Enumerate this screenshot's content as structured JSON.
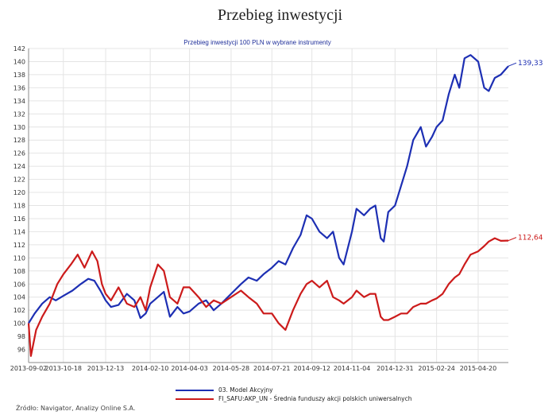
{
  "page_title": "Przebieg inwestycji",
  "source": "Źródło: Navigator, Analizy Online S.A.",
  "chart_data": {
    "type": "line",
    "title": "Przebieg inwestycji 100 PLN w wybrane instrumenty",
    "ylim": [
      94,
      142
    ],
    "y_ticks": [
      96,
      98,
      100,
      102,
      104,
      106,
      108,
      110,
      112,
      114,
      116,
      118,
      120,
      122,
      124,
      126,
      128,
      130,
      132,
      134,
      136,
      138,
      140,
      142
    ],
    "x_range": [
      "2013-09-02",
      "2015-05-30"
    ],
    "x_ticks": [
      "2013-09-02",
      "2013-10-18",
      "2013-12-13",
      "2014-02-10",
      "2014-04-03",
      "2014-05-28",
      "2014-07-21",
      "2014-09-12",
      "2014-11-04",
      "2014-12-31",
      "2015-02-24",
      "2015-04-20"
    ],
    "grid": true,
    "legend_position": "bottom",
    "series": [
      {
        "name": "03. Model Akcyjny",
        "color": "#1d2fb3",
        "end_label": "139,33",
        "points": [
          [
            "2013-09-02",
            100
          ],
          [
            "2013-09-10",
            101.5
          ],
          [
            "2013-09-20",
            103
          ],
          [
            "2013-09-30",
            104
          ],
          [
            "2013-10-08",
            103.5
          ],
          [
            "2013-10-18",
            104.2
          ],
          [
            "2013-10-30",
            105
          ],
          [
            "2013-11-10",
            106
          ],
          [
            "2013-11-20",
            106.8
          ],
          [
            "2013-11-28",
            106.5
          ],
          [
            "2013-12-06",
            105
          ],
          [
            "2013-12-13",
            103.5
          ],
          [
            "2013-12-20",
            102.5
          ],
          [
            "2013-12-30",
            102.8
          ],
          [
            "2014-01-10",
            104.5
          ],
          [
            "2014-01-20",
            103.5
          ],
          [
            "2014-01-28",
            100.8
          ],
          [
            "2014-02-04",
            101.5
          ],
          [
            "2014-02-10",
            103
          ],
          [
            "2014-02-20",
            104
          ],
          [
            "2014-02-28",
            104.8
          ],
          [
            "2014-03-08",
            101
          ],
          [
            "2014-03-18",
            102.5
          ],
          [
            "2014-03-26",
            101.5
          ],
          [
            "2014-04-03",
            101.8
          ],
          [
            "2014-04-15",
            103
          ],
          [
            "2014-04-25",
            103.5
          ],
          [
            "2014-05-05",
            102
          ],
          [
            "2014-05-15",
            103
          ],
          [
            "2014-05-28",
            104.5
          ],
          [
            "2014-06-10",
            106
          ],
          [
            "2014-06-20",
            107
          ],
          [
            "2014-07-01",
            106.5
          ],
          [
            "2014-07-10",
            107.5
          ],
          [
            "2014-07-21",
            108.5
          ],
          [
            "2014-07-30",
            109.5
          ],
          [
            "2014-08-08",
            109
          ],
          [
            "2014-08-18",
            111.5
          ],
          [
            "2014-08-28",
            113.5
          ],
          [
            "2014-09-05",
            116.5
          ],
          [
            "2014-09-12",
            116
          ],
          [
            "2014-09-22",
            114
          ],
          [
            "2014-10-02",
            113
          ],
          [
            "2014-10-10",
            114
          ],
          [
            "2014-10-18",
            110
          ],
          [
            "2014-10-24",
            109
          ],
          [
            "2014-11-04",
            114
          ],
          [
            "2014-11-10",
            117.5
          ],
          [
            "2014-11-20",
            116.5
          ],
          [
            "2014-11-28",
            117.5
          ],
          [
            "2014-12-05",
            118
          ],
          [
            "2014-12-12",
            113
          ],
          [
            "2014-12-16",
            112.5
          ],
          [
            "2014-12-22",
            117
          ],
          [
            "2014-12-31",
            118
          ],
          [
            "2015-01-08",
            121
          ],
          [
            "2015-01-16",
            124
          ],
          [
            "2015-01-24",
            128
          ],
          [
            "2015-02-03",
            130
          ],
          [
            "2015-02-10",
            127
          ],
          [
            "2015-02-18",
            128.5
          ],
          [
            "2015-02-24",
            130
          ],
          [
            "2015-03-04",
            131
          ],
          [
            "2015-03-12",
            135
          ],
          [
            "2015-03-20",
            138
          ],
          [
            "2015-03-26",
            136
          ],
          [
            "2015-04-02",
            140.5
          ],
          [
            "2015-04-10",
            141
          ],
          [
            "2015-04-20",
            140
          ],
          [
            "2015-04-28",
            136
          ],
          [
            "2015-05-04",
            135.5
          ],
          [
            "2015-05-12",
            137.5
          ],
          [
            "2015-05-20",
            138
          ],
          [
            "2015-05-30",
            139.3
          ]
        ]
      },
      {
        "name": "FI_SAFU:AKP_UN - Średnia funduszy akcji polskich uniwersalnych",
        "color": "#cc1b1b",
        "end_label": "112,64",
        "points": [
          [
            "2013-09-02",
            100
          ],
          [
            "2013-09-05",
            95
          ],
          [
            "2013-09-12",
            99
          ],
          [
            "2013-09-20",
            101
          ],
          [
            "2013-09-30",
            103
          ],
          [
            "2013-10-10",
            106
          ],
          [
            "2013-10-18",
            107.5
          ],
          [
            "2013-10-28",
            109
          ],
          [
            "2013-11-06",
            110.5
          ],
          [
            "2013-11-15",
            108.5
          ],
          [
            "2013-11-25",
            111
          ],
          [
            "2013-12-02",
            109.5
          ],
          [
            "2013-12-08",
            106
          ],
          [
            "2013-12-13",
            104.5
          ],
          [
            "2013-12-20",
            103.5
          ],
          [
            "2013-12-30",
            105.5
          ],
          [
            "2014-01-10",
            103
          ],
          [
            "2014-01-20",
            102.5
          ],
          [
            "2014-01-28",
            104
          ],
          [
            "2014-02-04",
            102
          ],
          [
            "2014-02-10",
            105.5
          ],
          [
            "2014-02-20",
            109
          ],
          [
            "2014-02-28",
            108
          ],
          [
            "2014-03-08",
            104
          ],
          [
            "2014-03-18",
            103
          ],
          [
            "2014-03-26",
            105.5
          ],
          [
            "2014-04-03",
            105.5
          ],
          [
            "2014-04-15",
            104
          ],
          [
            "2014-04-25",
            102.5
          ],
          [
            "2014-05-05",
            103.5
          ],
          [
            "2014-05-15",
            103
          ],
          [
            "2014-05-28",
            104
          ],
          [
            "2014-06-10",
            105
          ],
          [
            "2014-06-20",
            104
          ],
          [
            "2014-07-01",
            103
          ],
          [
            "2014-07-10",
            101.5
          ],
          [
            "2014-07-21",
            101.5
          ],
          [
            "2014-07-30",
            100
          ],
          [
            "2014-08-08",
            99
          ],
          [
            "2014-08-18",
            102
          ],
          [
            "2014-08-28",
            104.5
          ],
          [
            "2014-09-05",
            106
          ],
          [
            "2014-09-12",
            106.5
          ],
          [
            "2014-09-22",
            105.5
          ],
          [
            "2014-10-02",
            106.5
          ],
          [
            "2014-10-10",
            104
          ],
          [
            "2014-10-18",
            103.5
          ],
          [
            "2014-10-24",
            103
          ],
          [
            "2014-11-04",
            104
          ],
          [
            "2014-11-10",
            105
          ],
          [
            "2014-11-20",
            104
          ],
          [
            "2014-11-28",
            104.5
          ],
          [
            "2014-12-05",
            104.5
          ],
          [
            "2014-12-12",
            101
          ],
          [
            "2014-12-16",
            100.5
          ],
          [
            "2014-12-22",
            100.5
          ],
          [
            "2014-12-31",
            101
          ],
          [
            "2015-01-08",
            101.5
          ],
          [
            "2015-01-16",
            101.5
          ],
          [
            "2015-01-24",
            102.5
          ],
          [
            "2015-02-03",
            103
          ],
          [
            "2015-02-10",
            103
          ],
          [
            "2015-02-18",
            103.5
          ],
          [
            "2015-02-24",
            103.8
          ],
          [
            "2015-03-04",
            104.5
          ],
          [
            "2015-03-12",
            106
          ],
          [
            "2015-03-20",
            107
          ],
          [
            "2015-03-26",
            107.5
          ],
          [
            "2015-04-02",
            109
          ],
          [
            "2015-04-10",
            110.5
          ],
          [
            "2015-04-20",
            111
          ],
          [
            "2015-04-28",
            111.8
          ],
          [
            "2015-05-04",
            112.5
          ],
          [
            "2015-05-12",
            113
          ],
          [
            "2015-05-20",
            112.6
          ],
          [
            "2015-05-30",
            112.64
          ]
        ]
      }
    ]
  }
}
